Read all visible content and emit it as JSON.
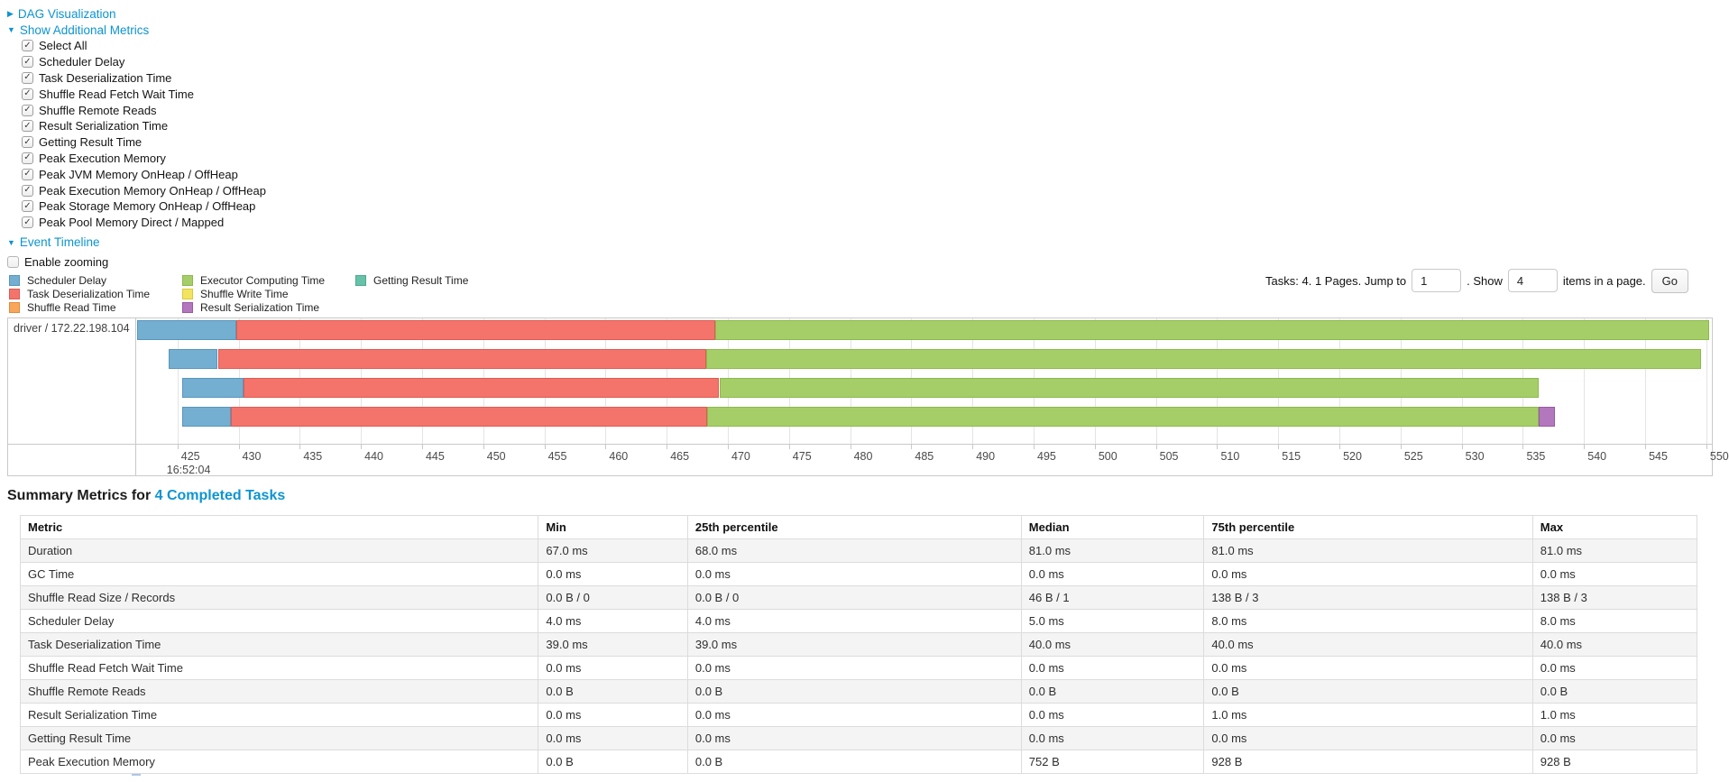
{
  "controls": {
    "dag_visualization_label": "DAG Visualization",
    "show_additional_metrics_label": "Show Additional Metrics",
    "metrics_checkboxes": [
      {
        "label": "Select All",
        "checked": true
      },
      {
        "label": "Scheduler Delay",
        "checked": true
      },
      {
        "label": "Task Deserialization Time",
        "checked": true
      },
      {
        "label": "Shuffle Read Fetch Wait Time",
        "checked": true
      },
      {
        "label": "Shuffle Remote Reads",
        "checked": true
      },
      {
        "label": "Result Serialization Time",
        "checked": true
      },
      {
        "label": "Getting Result Time",
        "checked": true
      },
      {
        "label": "Peak Execution Memory",
        "checked": true
      },
      {
        "label": "Peak JVM Memory OnHeap / OffHeap",
        "checked": true
      },
      {
        "label": "Peak Execution Memory OnHeap / OffHeap",
        "checked": true
      },
      {
        "label": "Peak Storage Memory OnHeap / OffHeap",
        "checked": true
      },
      {
        "label": "Peak Pool Memory Direct / Mapped",
        "checked": true
      }
    ],
    "event_timeline_label": "Event Timeline",
    "enable_zooming": {
      "label": "Enable zooming",
      "checked": false
    }
  },
  "legend": {
    "columns": [
      [
        {
          "label": "Scheduler Delay",
          "type": "scheduler_delay"
        },
        {
          "label": "Task Deserialization Time",
          "type": "task_deserialization"
        },
        {
          "label": "Shuffle Read Time",
          "type": "shuffle_read"
        }
      ],
      [
        {
          "label": "Executor Computing Time",
          "type": "executor_computing"
        },
        {
          "label": "Shuffle Write Time",
          "type": "shuffle_write"
        },
        {
          "label": "Result Serialization Time",
          "type": "result_serialization"
        }
      ],
      [
        {
          "label": "Getting Result Time",
          "type": "getting_result"
        }
      ]
    ]
  },
  "pagination": {
    "tasks_text": "Tasks: 4. 1 Pages. Jump to",
    "jump_value": "1",
    "show_text": ". Show",
    "show_value": "4",
    "items_text": "items in a page.",
    "go_label": "Go"
  },
  "chart_data": {
    "type": "timeline",
    "row_label": "driver / 172.22.198.104",
    "x_axis": {
      "units": "ms",
      "domain_start": 421.7,
      "domain_end": 550.45,
      "tick_start": 425,
      "tick_end": 550,
      "tick_step": 5,
      "time_label": "16:52:04"
    },
    "colors": {
      "scheduler_delay": {
        "fill": "#74AFD1",
        "border": "#5795BC"
      },
      "task_deserialization": {
        "fill": "#F4746B",
        "border": "#DE5B52"
      },
      "shuffle_read": {
        "fill": "#F9A65A",
        "border": "#E08A3C"
      },
      "executor_computing": {
        "fill": "#A6CE68",
        "border": "#8CB94E"
      },
      "shuffle_write": {
        "fill": "#F2E45E",
        "border": "#D8C93F"
      },
      "result_serialization": {
        "fill": "#B377BD",
        "border": "#9859A5"
      },
      "getting_result": {
        "fill": "#68C2A9",
        "border": "#4EA98D"
      }
    },
    "tasks": [
      {
        "segments": [
          {
            "type": "scheduler_delay",
            "start": 421.7,
            "end": 429.8
          },
          {
            "type": "task_deserialization",
            "start": 429.8,
            "end": 469.0
          },
          {
            "type": "executor_computing",
            "start": 469.0,
            "end": 550.2
          }
        ]
      },
      {
        "segments": [
          {
            "type": "scheduler_delay",
            "start": 424.3,
            "end": 428.3
          },
          {
            "type": "task_deserialization",
            "start": 428.3,
            "end": 468.2
          },
          {
            "type": "executor_computing",
            "start": 468.2,
            "end": 549.6
          }
        ]
      },
      {
        "segments": [
          {
            "type": "scheduler_delay",
            "start": 425.4,
            "end": 430.4
          },
          {
            "type": "task_deserialization",
            "start": 430.4,
            "end": 469.3
          },
          {
            "type": "executor_computing",
            "start": 469.3,
            "end": 536.3
          }
        ]
      },
      {
        "segments": [
          {
            "type": "scheduler_delay",
            "start": 425.4,
            "end": 429.4
          },
          {
            "type": "task_deserialization",
            "start": 429.4,
            "end": 468.3
          },
          {
            "type": "executor_computing",
            "start": 468.3,
            "end": 536.3
          },
          {
            "type": "result_serialization",
            "start": 536.3,
            "end": 537.6
          }
        ]
      }
    ]
  },
  "summary": {
    "title_prefix": "Summary Metrics for ",
    "title_link": "4 Completed Tasks",
    "table": {
      "headers": [
        "Metric",
        "Min",
        "25th percentile",
        "Median",
        "75th percentile",
        "Max"
      ],
      "rows": [
        [
          "Duration",
          "67.0 ms",
          "68.0 ms",
          "81.0 ms",
          "81.0 ms",
          "81.0 ms"
        ],
        [
          "GC Time",
          "0.0 ms",
          "0.0 ms",
          "0.0 ms",
          "0.0 ms",
          "0.0 ms"
        ],
        [
          "Shuffle Read Size / Records",
          "0.0 B / 0",
          "0.0 B / 0",
          "46 B / 1",
          "138 B / 3",
          "138 B / 3"
        ],
        [
          "Scheduler Delay",
          "4.0 ms",
          "4.0 ms",
          "5.0 ms",
          "8.0 ms",
          "8.0 ms"
        ],
        [
          "Task Deserialization Time",
          "39.0 ms",
          "39.0 ms",
          "40.0 ms",
          "40.0 ms",
          "40.0 ms"
        ],
        [
          "Shuffle Read Fetch Wait Time",
          "0.0 ms",
          "0.0 ms",
          "0.0 ms",
          "0.0 ms",
          "0.0 ms"
        ],
        [
          "Shuffle Remote Reads",
          "0.0 B",
          "0.0 B",
          "0.0 B",
          "0.0 B",
          "0.0 B"
        ],
        [
          "Result Serialization Time",
          "0.0 ms",
          "0.0 ms",
          "0.0 ms",
          "1.0 ms",
          "1.0 ms"
        ],
        [
          "Getting Result Time",
          "0.0 ms",
          "0.0 ms",
          "0.0 ms",
          "0.0 ms",
          "0.0 ms"
        ],
        [
          "Peak Execution Memory",
          "0.0 B",
          "0.0 B",
          "752 B",
          "928 B",
          "928 B"
        ]
      ]
    }
  }
}
